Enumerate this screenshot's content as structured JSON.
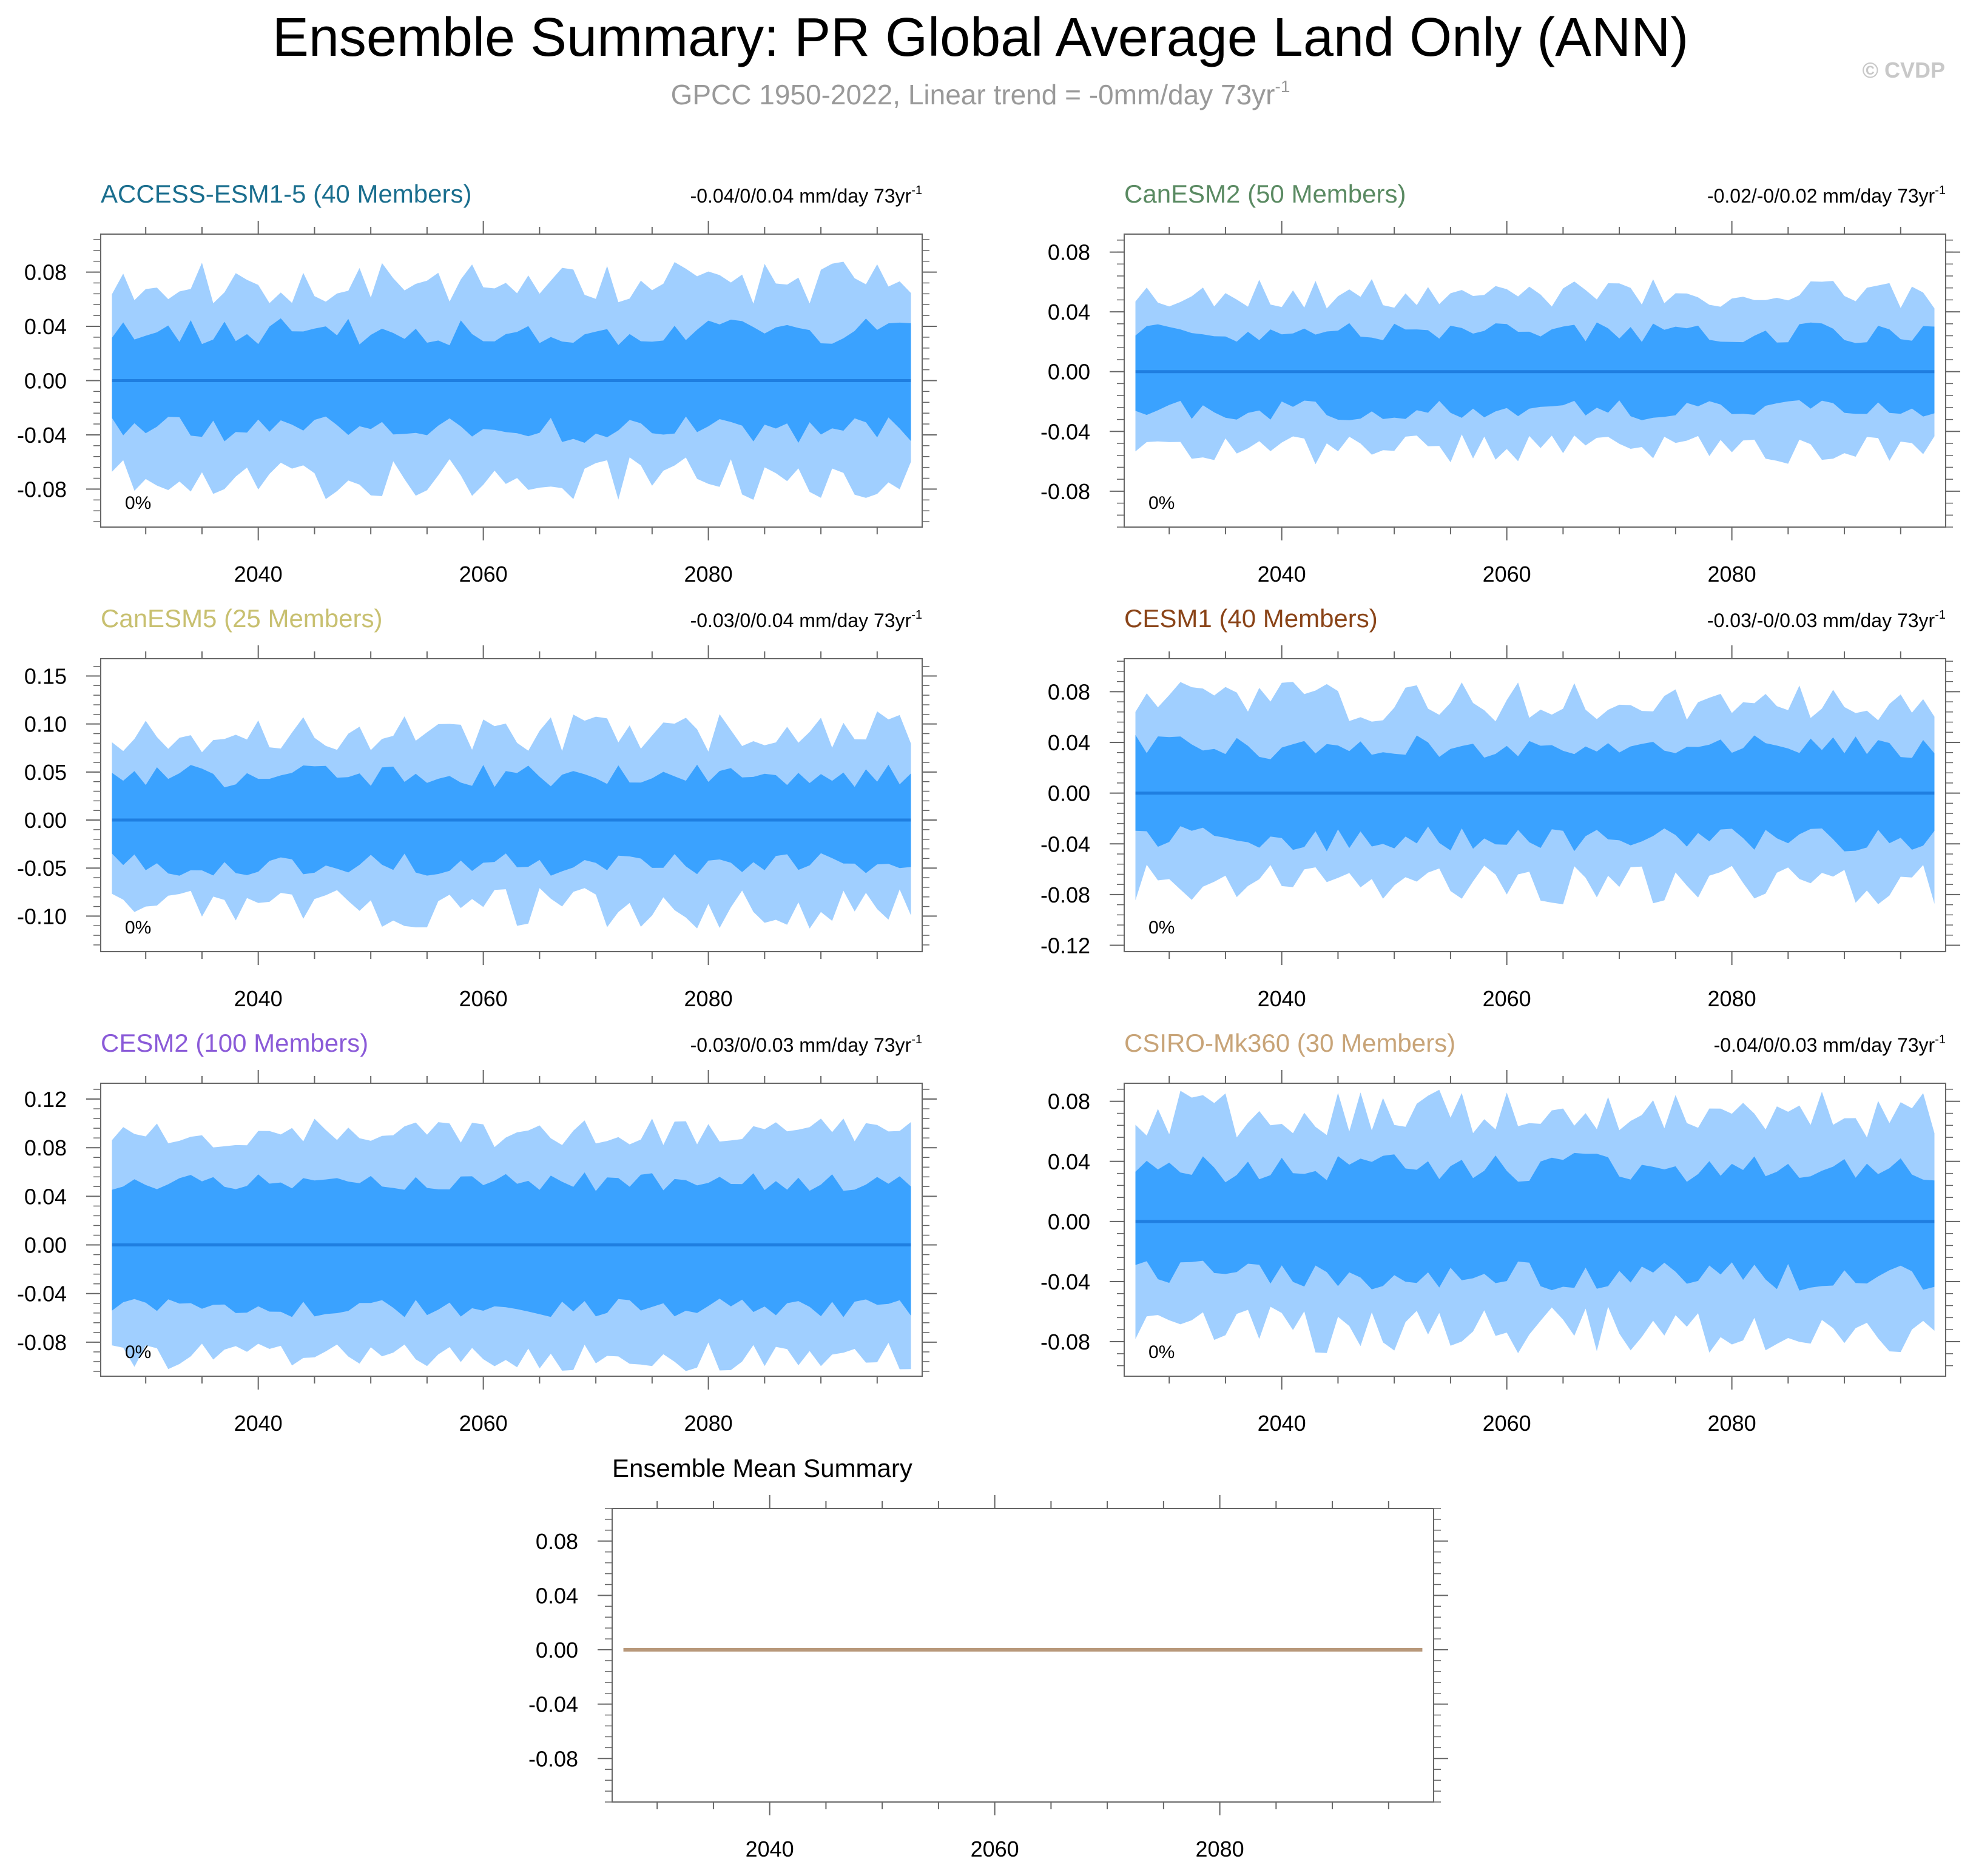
{
  "header": {
    "title": "Ensemble Summary: PR Global Average Land Only (ANN)",
    "subtitle_prefix": "GPCC 1950-2022, Linear trend = -0mm/day 73yr",
    "subtitle_sup": "-1",
    "watermark": "© CVDP"
  },
  "colors": {
    "outer_band": "#a0cfff",
    "inner_band": "#3aa2ff",
    "mean_line": "#1f7ee0",
    "axis": "#666666",
    "text": "#000000",
    "subtitle": "#999999",
    "watermark": "#c8c8c8",
    "summary_line": "#b8987a"
  },
  "chart_data": [
    {
      "type": "area",
      "model": "ACCESS-ESM1-5 (40 Members)",
      "title_color": "#1a6e8e",
      "trend_prefix": "-0.04/0/0.04 mm/day 73yr",
      "trend_sup": "-1",
      "percent_label": "0%",
      "x_range": [
        2026,
        2099
      ],
      "x_ticks": [
        2040,
        2060,
        2080
      ],
      "ylim": [
        -0.108,
        0.108
      ],
      "y_ticks": [
        "0.08",
        "0.04",
        "0.00",
        "-0.04",
        "-0.08"
      ],
      "y_tick_values": [
        0.08,
        0.04,
        0.0,
        -0.04,
        -0.08
      ],
      "seed": 11,
      "outer_amp": 0.072,
      "inner_amp": 0.036,
      "outer_var": 0.016,
      "inner_var": 0.01,
      "series": [
        {
          "name": "ensemble mean",
          "value": 0.0
        }
      ]
    },
    {
      "type": "area",
      "model": "CanESM2 (50 Members)",
      "title_color": "#5a8a62",
      "trend_prefix": "-0.02/-0/0.02 mm/day 73yr",
      "trend_sup": "-1",
      "percent_label": "0%",
      "x_range": [
        2026,
        2099
      ],
      "x_ticks": [
        2040,
        2060,
        2080
      ],
      "ylim": [
        -0.104,
        0.092
      ],
      "y_ticks": [
        "0.08",
        "0.04",
        "0.00",
        "-0.04",
        "-0.08"
      ],
      "y_tick_values": [
        0.08,
        0.04,
        0.0,
        -0.04,
        -0.08
      ],
      "seed": 23,
      "outer_amp": 0.052,
      "inner_amp": 0.026,
      "outer_var": 0.01,
      "inner_var": 0.007,
      "series": [
        {
          "name": "ensemble mean",
          "value": 0.0
        }
      ]
    },
    {
      "type": "area",
      "model": "CanESM5 (25 Members)",
      "title_color": "#c8c070",
      "trend_prefix": "-0.03/0/0.04 mm/day 73yr",
      "trend_sup": "-1",
      "percent_label": "0%",
      "x_range": [
        2026,
        2099
      ],
      "x_ticks": [
        2040,
        2060,
        2080
      ],
      "ylim": [
        -0.137,
        0.168
      ],
      "y_ticks": [
        "0.15",
        "0.10",
        "0.05",
        "0.00",
        "-0.05",
        "-0.10"
      ],
      "y_tick_values": [
        0.15,
        0.1,
        0.05,
        0.0,
        -0.05,
        -0.1
      ],
      "seed": 37,
      "outer_amp": 0.092,
      "inner_amp": 0.046,
      "outer_var": 0.022,
      "inner_var": 0.012,
      "series": [
        {
          "name": "ensemble mean",
          "value": 0.0
        }
      ]
    },
    {
      "type": "area",
      "model": "CESM1 (40 Members)",
      "title_color": "#8a4418",
      "trend_prefix": "-0.03/-0/0.03 mm/day 73yr",
      "trend_sup": "-1",
      "percent_label": "0%",
      "x_range": [
        2026,
        2099
      ],
      "x_ticks": [
        2040,
        2060,
        2080
      ],
      "ylim": [
        -0.125,
        0.106
      ],
      "y_ticks": [
        "0.08",
        "0.04",
        "0.00",
        "-0.04",
        "-0.08",
        "-0.12"
      ],
      "y_tick_values": [
        0.08,
        0.04,
        0.0,
        -0.04,
        -0.08,
        -0.12
      ],
      "seed": 41,
      "outer_amp": 0.072,
      "inner_amp": 0.036,
      "outer_var": 0.016,
      "inner_var": 0.01,
      "series": [
        {
          "name": "ensemble mean",
          "value": 0.0
        }
      ]
    },
    {
      "type": "area",
      "model": "CESM2 (100 Members)",
      "title_color": "#8a5ad8",
      "trend_prefix": "-0.03/0/0.03 mm/day 73yr",
      "trend_sup": "-1",
      "percent_label": "0%",
      "x_range": [
        2026,
        2099
      ],
      "x_ticks": [
        2040,
        2060,
        2080
      ],
      "ylim": [
        -0.108,
        0.133
      ],
      "y_ticks": [
        "0.12",
        "0.08",
        "0.04",
        "0.00",
        "-0.04",
        "-0.08"
      ],
      "y_tick_values": [
        0.12,
        0.08,
        0.04,
        0.0,
        -0.04,
        -0.08
      ],
      "seed": 53,
      "outer_amp": 0.092,
      "inner_amp": 0.052,
      "outer_var": 0.012,
      "inner_var": 0.008,
      "series": [
        {
          "name": "ensemble mean",
          "value": 0.0
        }
      ]
    },
    {
      "type": "area",
      "model": "CSIRO-Mk360 (30 Members)",
      "title_color": "#c8a478",
      "trend_prefix": "-0.04/0/0.03 mm/day 73yr",
      "trend_sup": "-1",
      "percent_label": "0%",
      "x_range": [
        2026,
        2099
      ],
      "x_ticks": [
        2040,
        2060,
        2080
      ],
      "ylim": [
        -0.103,
        0.092
      ],
      "y_ticks": [
        "0.08",
        "0.04",
        "0.00",
        "-0.04",
        "-0.08"
      ],
      "y_tick_values": [
        0.08,
        0.04,
        0.0,
        -0.04,
        -0.08
      ],
      "seed": 67,
      "outer_amp": 0.072,
      "inner_amp": 0.036,
      "outer_var": 0.016,
      "inner_var": 0.01,
      "series": [
        {
          "name": "ensemble mean",
          "value": 0.0
        }
      ]
    },
    {
      "type": "line",
      "title": "Ensemble Mean Summary",
      "x_range": [
        2026,
        2099
      ],
      "x_ticks": [
        2040,
        2060,
        2080
      ],
      "ylim": [
        -0.112,
        0.104
      ],
      "y_ticks": [
        "0.08",
        "0.04",
        "0.00",
        "-0.04",
        "-0.08"
      ],
      "y_tick_values": [
        0.08,
        0.04,
        0.0,
        -0.04,
        -0.08
      ],
      "series": [
        {
          "name": "ensemble mean (all models)",
          "value": 0.0
        }
      ]
    }
  ]
}
